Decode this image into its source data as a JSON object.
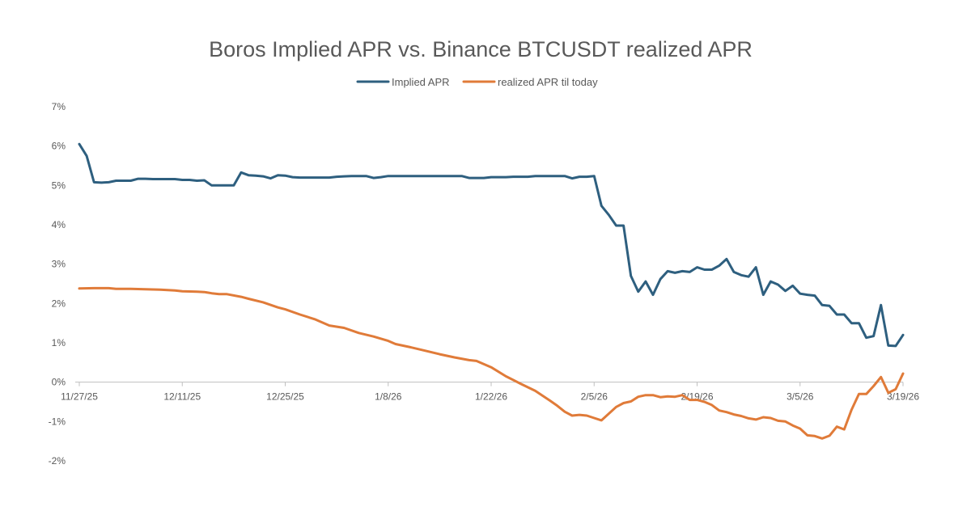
{
  "chart_data": {
    "type": "line",
    "title": "Boros Implied APR vs. Binance BTCUSDT realized APR",
    "xlabel": "",
    "ylabel": "",
    "ylim": [
      -0.02,
      0.07
    ],
    "y_ticks": [
      "7%",
      "6%",
      "5%",
      "4%",
      "3%",
      "2%",
      "1%",
      "0%",
      "-1%",
      "-2%"
    ],
    "x_ticks": [
      "11/27/25",
      "12/11/25",
      "12/25/25",
      "1/8/26",
      "1/22/26",
      "2/5/26",
      "2/19/26",
      "3/5/26",
      "3/19/26"
    ],
    "x_range": [
      "11/27/25",
      "3/19/26"
    ],
    "grid": false,
    "legend_position": "top",
    "series": [
      {
        "name": "Implied APR",
        "color": "#2e5f7f",
        "points": [
          [
            "11/27/25",
            0.0605
          ],
          [
            "11/28/25",
            0.0575
          ],
          [
            "11/29/25",
            0.0508
          ],
          [
            "11/30/25",
            0.0507
          ],
          [
            "12/1/25",
            0.0508
          ],
          [
            "12/2/25",
            0.0512
          ],
          [
            "12/3/25",
            0.0512
          ],
          [
            "12/4/25",
            0.0512
          ],
          [
            "12/5/25",
            0.0517
          ],
          [
            "12/6/25",
            0.0517
          ],
          [
            "12/7/25",
            0.0516
          ],
          [
            "12/8/25",
            0.0516
          ],
          [
            "12/9/25",
            0.0516
          ],
          [
            "12/10/25",
            0.0516
          ],
          [
            "12/11/25",
            0.0514
          ],
          [
            "12/12/25",
            0.0514
          ],
          [
            "12/13/25",
            0.0512
          ],
          [
            "12/14/25",
            0.0513
          ],
          [
            "12/15/25",
            0.05
          ],
          [
            "12/16/25",
            0.05
          ],
          [
            "12/17/25",
            0.05
          ],
          [
            "12/18/25",
            0.05
          ],
          [
            "12/19/25",
            0.0533
          ],
          [
            "12/20/25",
            0.0526
          ],
          [
            "12/21/25",
            0.0525
          ],
          [
            "12/22/25",
            0.0523
          ],
          [
            "12/23/25",
            0.0518
          ],
          [
            "12/24/25",
            0.0526
          ],
          [
            "12/25/25",
            0.0525
          ],
          [
            "12/26/25",
            0.0521
          ],
          [
            "12/27/25",
            0.052
          ],
          [
            "12/28/25",
            0.052
          ],
          [
            "12/29/25",
            0.052
          ],
          [
            "12/30/25",
            0.052
          ],
          [
            "12/31/25",
            0.052
          ],
          [
            "1/1/26",
            0.0522
          ],
          [
            "1/2/26",
            0.0523
          ],
          [
            "1/3/26",
            0.0524
          ],
          [
            "1/4/26",
            0.0524
          ],
          [
            "1/5/26",
            0.0524
          ],
          [
            "1/6/26",
            0.0519
          ],
          [
            "1/7/26",
            0.0521
          ],
          [
            "1/8/26",
            0.0524
          ],
          [
            "1/9/26",
            0.0524
          ],
          [
            "1/10/26",
            0.0524
          ],
          [
            "1/11/26",
            0.0524
          ],
          [
            "1/12/26",
            0.0524
          ],
          [
            "1/13/26",
            0.0524
          ],
          [
            "1/14/26",
            0.0524
          ],
          [
            "1/15/26",
            0.0524
          ],
          [
            "1/16/26",
            0.0524
          ],
          [
            "1/17/26",
            0.0524
          ],
          [
            "1/18/26",
            0.0524
          ],
          [
            "1/19/26",
            0.0519
          ],
          [
            "1/20/26",
            0.0519
          ],
          [
            "1/21/26",
            0.0519
          ],
          [
            "1/22/26",
            0.0521
          ],
          [
            "1/23/26",
            0.0521
          ],
          [
            "1/24/26",
            0.0521
          ],
          [
            "1/25/26",
            0.0522
          ],
          [
            "1/26/26",
            0.0522
          ],
          [
            "1/27/26",
            0.0522
          ],
          [
            "1/28/26",
            0.0524
          ],
          [
            "1/29/26",
            0.0524
          ],
          [
            "1/30/26",
            0.0524
          ],
          [
            "1/31/26",
            0.0524
          ],
          [
            "2/1/26",
            0.0524
          ],
          [
            "2/2/26",
            0.0518
          ],
          [
            "2/3/26",
            0.0522
          ],
          [
            "2/4/26",
            0.0522
          ],
          [
            "2/5/26",
            0.0524
          ],
          [
            "2/6/26",
            0.0448
          ],
          [
            "2/7/26",
            0.0425
          ],
          [
            "2/8/26",
            0.0398
          ],
          [
            "2/9/26",
            0.0398
          ],
          [
            "2/10/26",
            0.027
          ],
          [
            "2/11/26",
            0.023
          ],
          [
            "2/12/26",
            0.0256
          ],
          [
            "2/13/26",
            0.0222
          ],
          [
            "2/14/26",
            0.0262
          ],
          [
            "2/15/26",
            0.0282
          ],
          [
            "2/16/26",
            0.0278
          ],
          [
            "2/17/26",
            0.0282
          ],
          [
            "2/18/26",
            0.028
          ],
          [
            "2/19/26",
            0.0292
          ],
          [
            "2/20/26",
            0.0286
          ],
          [
            "2/21/26",
            0.0286
          ],
          [
            "2/22/26",
            0.0296
          ],
          [
            "2/23/26",
            0.0313
          ],
          [
            "2/24/26",
            0.028
          ],
          [
            "2/25/26",
            0.0272
          ],
          [
            "2/26/26",
            0.0268
          ],
          [
            "2/27/26",
            0.0292
          ],
          [
            "2/28/26",
            0.0222
          ],
          [
            "3/1/26",
            0.0256
          ],
          [
            "3/2/26",
            0.0248
          ],
          [
            "3/3/26",
            0.0232
          ],
          [
            "3/4/26",
            0.0245
          ],
          [
            "3/5/26",
            0.0225
          ],
          [
            "3/6/26",
            0.0222
          ],
          [
            "3/7/26",
            0.022
          ],
          [
            "3/8/26",
            0.0196
          ],
          [
            "3/9/26",
            0.0194
          ],
          [
            "3/10/26",
            0.0172
          ],
          [
            "3/11/26",
            0.0172
          ],
          [
            "3/12/26",
            0.015
          ],
          [
            "3/13/26",
            0.015
          ],
          [
            "3/14/26",
            0.0113
          ],
          [
            "3/15/26",
            0.0117
          ],
          [
            "3/16/26",
            0.0196
          ],
          [
            "3/17/26",
            0.0093
          ],
          [
            "3/18/26",
            0.0092
          ],
          [
            "3/19/26",
            0.012
          ]
        ]
      },
      {
        "name": "realized APR til today",
        "color": "#e07b39",
        "points": [
          [
            "11/27/25",
            0.0238
          ],
          [
            "11/29/25",
            0.0239
          ],
          [
            "12/1/25",
            0.0239
          ],
          [
            "12/2/25",
            0.0237
          ],
          [
            "12/4/25",
            0.0237
          ],
          [
            "12/6/25",
            0.0236
          ],
          [
            "12/8/25",
            0.0235
          ],
          [
            "12/10/25",
            0.0233
          ],
          [
            "12/11/25",
            0.0231
          ],
          [
            "12/13/25",
            0.023
          ],
          [
            "12/14/25",
            0.0229
          ],
          [
            "12/15/25",
            0.0226
          ],
          [
            "12/16/25",
            0.0224
          ],
          [
            "12/17/25",
            0.0224
          ],
          [
            "12/19/25",
            0.0217
          ],
          [
            "12/20/25",
            0.0212
          ],
          [
            "12/22/25",
            0.0203
          ],
          [
            "12/24/25",
            0.019
          ],
          [
            "12/25/25",
            0.0185
          ],
          [
            "12/27/25",
            0.0172
          ],
          [
            "12/29/25",
            0.016
          ],
          [
            "12/31/25",
            0.0144
          ],
          [
            "1/2/26",
            0.0138
          ],
          [
            "1/4/26",
            0.0125
          ],
          [
            "1/6/26",
            0.0116
          ],
          [
            "1/8/26",
            0.0105
          ],
          [
            "1/9/26",
            0.0097
          ],
          [
            "1/11/26",
            0.0089
          ],
          [
            "1/13/26",
            0.008
          ],
          [
            "1/15/26",
            0.0071
          ],
          [
            "1/17/26",
            0.0063
          ],
          [
            "1/19/26",
            0.0056
          ],
          [
            "1/20/26",
            0.0054
          ],
          [
            "1/22/26",
            0.0038
          ],
          [
            "1/24/26",
            0.0015
          ],
          [
            "1/26/26",
            -0.0004
          ],
          [
            "1/28/26",
            -0.0022
          ],
          [
            "1/30/26",
            -0.0047
          ],
          [
            "1/31/26",
            -0.006
          ],
          [
            "2/1/26",
            -0.0075
          ],
          [
            "2/2/26",
            -0.0085
          ],
          [
            "2/3/26",
            -0.0083
          ],
          [
            "2/4/26",
            -0.0085
          ],
          [
            "2/5/26",
            -0.0091
          ],
          [
            "2/6/26",
            -0.0097
          ],
          [
            "2/8/26",
            -0.0063
          ],
          [
            "2/9/26",
            -0.0053
          ],
          [
            "2/10/26",
            -0.0049
          ],
          [
            "2/11/26",
            -0.0037
          ],
          [
            "2/12/26",
            -0.0033
          ],
          [
            "2/13/26",
            -0.0033
          ],
          [
            "2/14/26",
            -0.0038
          ],
          [
            "2/15/26",
            -0.0036
          ],
          [
            "2/16/26",
            -0.0037
          ],
          [
            "2/17/26",
            -0.0033
          ],
          [
            "2/18/26",
            -0.0045
          ],
          [
            "2/19/26",
            -0.0045
          ],
          [
            "2/20/26",
            -0.005
          ],
          [
            "2/21/26",
            -0.0058
          ],
          [
            "2/22/26",
            -0.0072
          ],
          [
            "2/23/26",
            -0.0076
          ],
          [
            "2/24/26",
            -0.0082
          ],
          [
            "2/25/26",
            -0.0086
          ],
          [
            "2/26/26",
            -0.0092
          ],
          [
            "2/27/26",
            -0.0095
          ],
          [
            "2/28/26",
            -0.0089
          ],
          [
            "3/1/26",
            -0.0091
          ],
          [
            "3/2/26",
            -0.0098
          ],
          [
            "3/3/26",
            -0.01
          ],
          [
            "3/4/26",
            -0.011
          ],
          [
            "3/5/26",
            -0.0118
          ],
          [
            "3/6/26",
            -0.0135
          ],
          [
            "3/7/26",
            -0.0137
          ],
          [
            "3/8/26",
            -0.0143
          ],
          [
            "3/9/26",
            -0.0136
          ],
          [
            "3/10/26",
            -0.0113
          ],
          [
            "3/11/26",
            -0.012
          ],
          [
            "3/12/26",
            -0.007
          ],
          [
            "3/13/26",
            -0.003
          ],
          [
            "3/14/26",
            -0.003
          ],
          [
            "3/15/26",
            -0.001
          ],
          [
            "3/16/26",
            0.0013
          ],
          [
            "3/17/26",
            -0.0027
          ],
          [
            "3/18/26",
            -0.0018
          ],
          [
            "3/19/26",
            0.0022
          ]
        ]
      }
    ]
  }
}
